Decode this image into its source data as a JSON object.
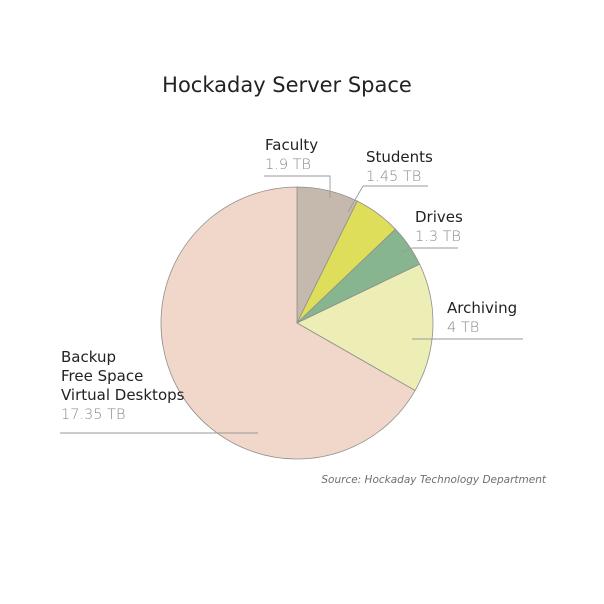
{
  "chart_data": {
    "type": "pie",
    "title": "Hockaday Server Space",
    "unit": "TB",
    "slices": [
      {
        "label_lines": [
          "Faculty"
        ],
        "value": 1.9,
        "value_text": "1.9 TB",
        "color": "#c5b9ad"
      },
      {
        "label_lines": [
          "Students"
        ],
        "value": 1.45,
        "value_text": "1.45 TB",
        "color": "#dede5a"
      },
      {
        "label_lines": [
          "Drives"
        ],
        "value": 1.3,
        "value_text": "1.3 TB",
        "color": "#86b58f"
      },
      {
        "label_lines": [
          "Archiving"
        ],
        "value": 4,
        "value_text": "4 TB",
        "color": "#eceeb6"
      },
      {
        "label_lines": [
          "Backup",
          "Free Space",
          "Virtual Desktops"
        ],
        "value": 17.35,
        "value_text": "17.35 TB",
        "color": "#f0d7ca"
      }
    ],
    "source": "Source: Hockaday Technology Department"
  }
}
